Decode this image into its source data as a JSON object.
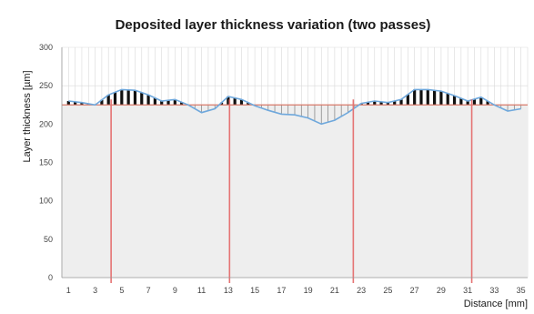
{
  "chart_data": {
    "type": "area",
    "title": "Deposited layer thickness variation (two passes)",
    "xlabel": "Distance [mm]",
    "ylabel": "Layer thickness [µm]",
    "xlim": [
      0.5,
      35.5
    ],
    "ylim": [
      0,
      300
    ],
    "y_ticks": [
      0,
      50,
      100,
      150,
      200,
      250,
      300
    ],
    "x_ticks": [
      1,
      3,
      5,
      7,
      9,
      11,
      13,
      15,
      17,
      19,
      21,
      23,
      25,
      27,
      29,
      31,
      33,
      35
    ],
    "grid": true,
    "baseline": 225,
    "x": [
      1,
      2,
      3,
      4,
      5,
      6,
      7,
      8,
      9,
      10,
      11,
      12,
      13,
      14,
      15,
      16,
      17,
      18,
      19,
      20,
      21,
      22,
      23,
      24,
      25,
      26,
      27,
      28,
      29,
      30,
      31,
      32,
      33,
      34,
      35
    ],
    "values": [
      230,
      228,
      225,
      238,
      245,
      244,
      238,
      230,
      232,
      225,
      215,
      220,
      236,
      232,
      224,
      218,
      213,
      212,
      208,
      200,
      205,
      215,
      227,
      230,
      228,
      232,
      245,
      245,
      243,
      237,
      230,
      235,
      225,
      217,
      220
    ],
    "pass_boundaries": [
      4.2,
      13.1,
      22.4,
      31.3
    ],
    "colors": {
      "line": "#6fa8dc",
      "above_fill": "#111111",
      "below_fill": "#8a8a8a",
      "baseline": "#d87a6a",
      "pass_boundary": "#e57373",
      "grid": "#d9d9d9",
      "fill_band": "#eeeeee"
    }
  }
}
